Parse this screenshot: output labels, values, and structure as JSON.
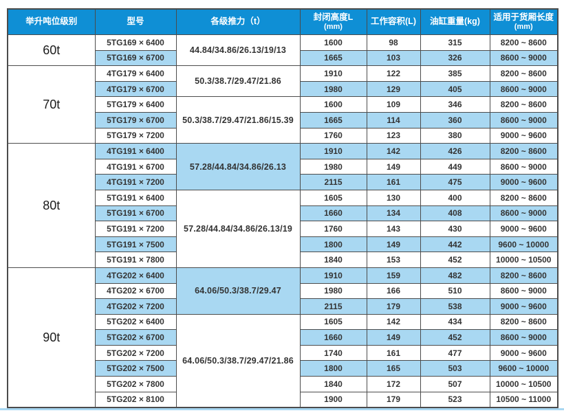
{
  "colors": {
    "header_bg": "#0f8fd5",
    "row_alt_bg": "#a9d8f2",
    "border": "#4b4b4b",
    "text": "#333333"
  },
  "columns": [
    {
      "line1": "举升吨位级别",
      "line2": ""
    },
    {
      "line1": "型号",
      "line2": ""
    },
    {
      "line1": "各级推力（t）",
      "line2": ""
    },
    {
      "line1": "封闭高度L",
      "line2": "(mm)"
    },
    {
      "line1": "工作容积(L)",
      "line2": ""
    },
    {
      "line1": "油缸重量(kg)",
      "line2": ""
    },
    {
      "line1": "适用于货厢长度",
      "line2": "(mm)"
    }
  ],
  "groups": [
    {
      "tonnage": "60t",
      "subgroups": [
        {
          "thrust": "44.84/34.86/26.13/19/13",
          "thrust_shaded": false,
          "rows": [
            {
              "model": "5TG169 × 6400",
              "closed_height": "1600",
              "volume": "98",
              "weight": "315",
              "box_length": "8200 ~ 8600",
              "shaded": false
            },
            {
              "model": "5TG169 × 6700",
              "closed_height": "1665",
              "volume": "103",
              "weight": "326",
              "box_length": "8600 ~ 9000",
              "shaded": true
            }
          ]
        }
      ]
    },
    {
      "tonnage": "70t",
      "subgroups": [
        {
          "thrust": "50.3/38.7/29.47/21.86",
          "thrust_shaded": false,
          "rows": [
            {
              "model": "4TG179 × 6400",
              "closed_height": "1910",
              "volume": "122",
              "weight": "385",
              "box_length": "8200 ~ 8600",
              "shaded": false
            },
            {
              "model": "4TG179 × 6700",
              "closed_height": "1980",
              "volume": "129",
              "weight": "405",
              "box_length": "8600 ~ 9000",
              "shaded": true
            }
          ]
        },
        {
          "thrust": "50.3/38.7/29.47/21.86/15.39",
          "thrust_shaded": false,
          "rows": [
            {
              "model": "5TG179 × 6400",
              "closed_height": "1600",
              "volume": "109",
              "weight": "346",
              "box_length": "8200 ~ 8600",
              "shaded": false
            },
            {
              "model": "5TG179 × 6700",
              "closed_height": "1665",
              "volume": "114",
              "weight": "360",
              "box_length": "8600 ~ 9000",
              "shaded": true
            },
            {
              "model": "5TG179 × 7200",
              "closed_height": "1760",
              "volume": "123",
              "weight": "380",
              "box_length": "9000 ~ 9600",
              "shaded": false
            }
          ]
        }
      ]
    },
    {
      "tonnage": "80t",
      "subgroups": [
        {
          "thrust": "57.28/44.84/34.86/26.13",
          "thrust_shaded": true,
          "rows": [
            {
              "model": "4TG191 × 6400",
              "closed_height": "1910",
              "volume": "142",
              "weight": "426",
              "box_length": "8200 ~ 8600",
              "shaded": true
            },
            {
              "model": "4TG191 × 6700",
              "closed_height": "1980",
              "volume": "149",
              "weight": "449",
              "box_length": "8600 ~ 9000",
              "shaded": false
            },
            {
              "model": "4TG191 × 7200",
              "closed_height": "2115",
              "volume": "161",
              "weight": "475",
              "box_length": "9000 ~ 9600",
              "shaded": true
            }
          ]
        },
        {
          "thrust": "57.28/44.84/34.86/26.13/19",
          "thrust_shaded": false,
          "rows": [
            {
              "model": "5TG191 × 6400",
              "closed_height": "1605",
              "volume": "130",
              "weight": "400",
              "box_length": "8200 ~ 8600",
              "shaded": false
            },
            {
              "model": "5TG191 × 6700",
              "closed_height": "1660",
              "volume": "134",
              "weight": "408",
              "box_length": "8600 ~ 9000",
              "shaded": true
            },
            {
              "model": "5TG191 × 7200",
              "closed_height": "1760",
              "volume": "143",
              "weight": "430",
              "box_length": "9000 ~ 9600",
              "shaded": false
            },
            {
              "model": "5TG191 × 7500",
              "closed_height": "1800",
              "volume": "149",
              "weight": "442",
              "box_length": "9600 ~ 10000",
              "shaded": true
            },
            {
              "model": "5TG191 × 7800",
              "closed_height": "1840",
              "volume": "153",
              "weight": "452",
              "box_length": "10000 ~ 10500",
              "shaded": false
            }
          ]
        }
      ]
    },
    {
      "tonnage": "90t",
      "subgroups": [
        {
          "thrust": "64.06/50.3/38.7/29.47",
          "thrust_shaded": true,
          "rows": [
            {
              "model": "4TG202 × 6400",
              "closed_height": "1910",
              "volume": "159",
              "weight": "482",
              "box_length": "8200 ~ 8600",
              "shaded": true
            },
            {
              "model": "4TG202 × 6700",
              "closed_height": "1980",
              "volume": "166",
              "weight": "510",
              "box_length": "8600 ~ 9000",
              "shaded": false
            },
            {
              "model": "4TG202 × 7200",
              "closed_height": "2115",
              "volume": "179",
              "weight": "538",
              "box_length": "9000 ~ 9600",
              "shaded": true
            }
          ]
        },
        {
          "thrust": "64.06/50.3/38.7/29.47/21.86",
          "thrust_shaded": false,
          "rows": [
            {
              "model": "5TG202 × 6400",
              "closed_height": "1605",
              "volume": "142",
              "weight": "434",
              "box_length": "8200 ~ 8600",
              "shaded": false
            },
            {
              "model": "5TG202 × 6700",
              "closed_height": "1660",
              "volume": "149",
              "weight": "452",
              "box_length": "8600 ~ 9000",
              "shaded": true
            },
            {
              "model": "5TG202 × 7200",
              "closed_height": "1740",
              "volume": "161",
              "weight": "477",
              "box_length": "9000 ~ 9600",
              "shaded": false
            },
            {
              "model": "5TG202 × 7500",
              "closed_height": "1800",
              "volume": "165",
              "weight": "503",
              "box_length": "9600 ~ 10000",
              "shaded": true
            },
            {
              "model": "5TG202 × 7800",
              "closed_height": "1840",
              "volume": "172",
              "weight": "507",
              "box_length": "10000 ~ 10500",
              "shaded": false
            },
            {
              "model": "5TG202 × 8100",
              "closed_height": "1900",
              "volume": "179",
              "weight": "523",
              "box_length": "10500 ~ 11000",
              "shaded": false
            }
          ]
        }
      ]
    }
  ]
}
